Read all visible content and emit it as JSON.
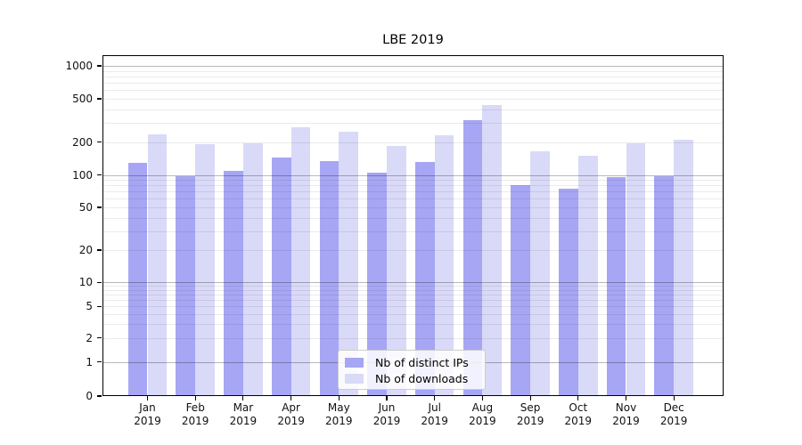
{
  "chart_data": {
    "type": "bar",
    "title": "LBE 2019",
    "categories": [
      "Jan 2019",
      "Feb 2019",
      "Mar 2019",
      "Apr 2019",
      "May 2019",
      "Jun 2019",
      "Jul 2019",
      "Aug 2019",
      "Sep 2019",
      "Oct 2019",
      "Nov 2019",
      "Dec 2019"
    ],
    "series": [
      {
        "name": "Nb of distinct IPs",
        "color": "#a6a6f4",
        "values": [
          130,
          97,
          110,
          145,
          135,
          105,
          133,
          320,
          80,
          75,
          95,
          98
        ]
      },
      {
        "name": "Nb of downloads",
        "color": "#d9d9f8",
        "values": [
          235,
          190,
          195,
          275,
          250,
          185,
          230,
          440,
          165,
          150,
          195,
          210
        ]
      }
    ],
    "xlabel": "",
    "ylabel": "",
    "yscale": "symlog",
    "ylim": [
      0,
      1250
    ],
    "yticks": [
      0,
      1,
      2,
      5,
      10,
      20,
      50,
      100,
      200,
      500,
      1000
    ],
    "grid": "horizontal log major+minor, drawn above bars",
    "legend_position": "inside lower-center"
  }
}
